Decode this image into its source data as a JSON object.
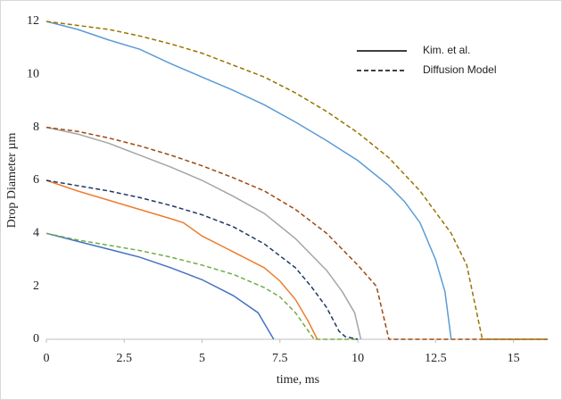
{
  "chart_data": {
    "type": "line",
    "xlabel": "time, ms",
    "ylabel": "Drop Diameter µm",
    "xlim": [
      0,
      16.1
    ],
    "ylim": [
      0,
      12
    ],
    "xticks": [
      0,
      2.5,
      5,
      7.5,
      10,
      12.5,
      15
    ],
    "yticks": [
      0,
      2,
      4,
      6,
      8,
      10,
      12
    ],
    "legend_position": "upper right",
    "legend": [
      {
        "name": "Kim. et al.",
        "color": "#000000",
        "dash": false
      },
      {
        "name": "Diffusion Model",
        "color": "#000000",
        "dash": true
      }
    ],
    "series": [
      {
        "color": "#4472c4",
        "dash": false,
        "x": [
          0,
          1,
          2,
          3,
          4,
          5,
          6,
          6.8,
          7,
          7.3
        ],
        "values": [
          4,
          3.7,
          3.4,
          3.1,
          2.7,
          2.25,
          1.65,
          1,
          0.6,
          0
        ]
      },
      {
        "color": "#70ad47",
        "dash": true,
        "x": [
          0,
          1,
          2,
          3,
          4,
          5,
          6,
          7,
          7.5,
          8,
          8.3,
          8.6,
          10
        ],
        "values": [
          4,
          3.75,
          3.55,
          3.35,
          3.1,
          2.8,
          2.45,
          1.95,
          1.6,
          1,
          0.5,
          0,
          0
        ]
      },
      {
        "color": "#ed7d31",
        "dash": false,
        "x": [
          0,
          1,
          2,
          3,
          4,
          4.4,
          5,
          6,
          7,
          7.5,
          8,
          8.4,
          8.7
        ],
        "values": [
          6,
          5.6,
          5.25,
          4.9,
          4.55,
          4.4,
          3.9,
          3.3,
          2.7,
          2.2,
          1.5,
          0.7,
          0
        ]
      },
      {
        "color": "#1f3864",
        "dash": true,
        "x": [
          0,
          1,
          2,
          3,
          4,
          5,
          6,
          7,
          8,
          8.5,
          9,
          9.4,
          9.6,
          10
        ],
        "values": [
          6,
          5.8,
          5.6,
          5.35,
          5.05,
          4.7,
          4.25,
          3.6,
          2.7,
          2,
          1.2,
          0.3,
          0.1,
          0
        ]
      },
      {
        "color": "#a5a5a5",
        "dash": false,
        "x": [
          0,
          1,
          2,
          3,
          4,
          5,
          6,
          7,
          8,
          9,
          9.5,
          9.9,
          10.1
        ],
        "values": [
          8,
          7.75,
          7.4,
          6.95,
          6.5,
          6,
          5.4,
          4.75,
          3.8,
          2.6,
          1.8,
          1,
          0
        ]
      },
      {
        "color": "#9e480e",
        "dash": true,
        "x": [
          0,
          1,
          2,
          3,
          4,
          5,
          6,
          7,
          8,
          9,
          10,
          10.6,
          11,
          16.1
        ],
        "values": [
          8,
          7.85,
          7.6,
          7.3,
          6.95,
          6.55,
          6.1,
          5.6,
          4.9,
          4,
          2.8,
          2,
          0,
          0
        ]
      },
      {
        "color": "#5b9bd5",
        "dash": false,
        "x": [
          0,
          1,
          2,
          3,
          4,
          5,
          6,
          7,
          8,
          9,
          10,
          11,
          11.5,
          12,
          12.5,
          12.8,
          13
        ],
        "values": [
          12,
          11.7,
          11.3,
          10.95,
          10.4,
          9.9,
          9.4,
          8.85,
          8.2,
          7.5,
          6.75,
          5.8,
          5.2,
          4.4,
          3,
          1.8,
          0
        ]
      },
      {
        "color": "#997300",
        "dash": true,
        "x": [
          0,
          1,
          2,
          3,
          4,
          5,
          6,
          7,
          8,
          9,
          10,
          11,
          12,
          13,
          13.5,
          14,
          15,
          16.1
        ],
        "values": [
          12,
          11.85,
          11.7,
          11.45,
          11.15,
          10.8,
          10.35,
          9.9,
          9.3,
          8.6,
          7.8,
          6.85,
          5.6,
          4,
          2.8,
          0,
          0,
          0
        ]
      }
    ]
  }
}
